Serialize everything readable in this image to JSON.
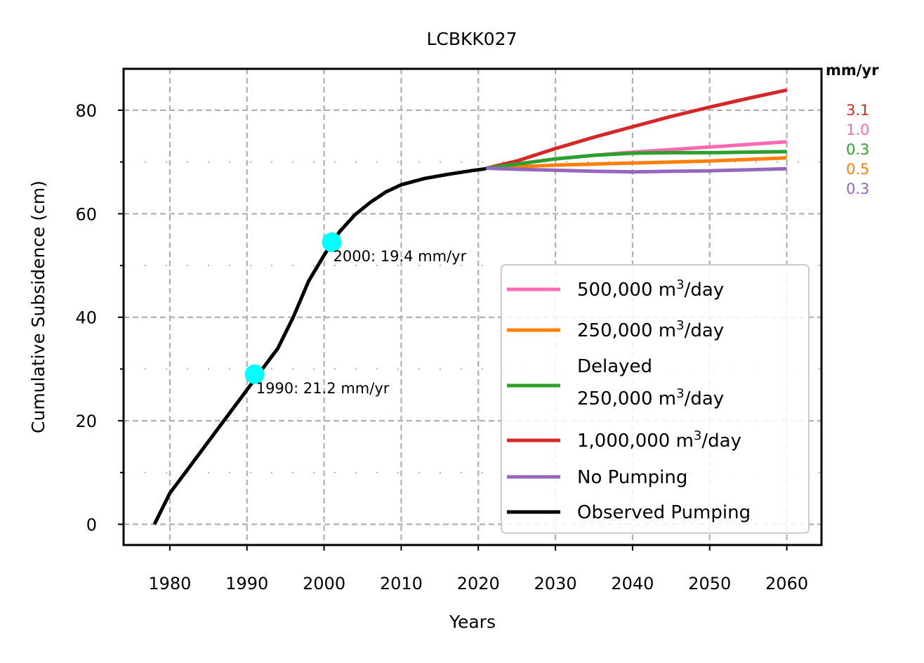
{
  "chart_data": {
    "type": "line",
    "title": "LCBKK027",
    "xlabel": "Years",
    "ylabel": "Cumulative Subsidence (cm)",
    "xlim": [
      1974,
      2064.5
    ],
    "ylim": [
      -4,
      88
    ],
    "xticks": [
      1980,
      1990,
      2000,
      2010,
      2020,
      2030,
      2040,
      2050,
      2060
    ],
    "yticks": [
      0,
      20,
      40,
      60,
      80
    ],
    "grid": true,
    "legend_position": "lower-right",
    "observed": {
      "name": "Observed Pumping",
      "color": "#000000",
      "x": [
        1978,
        1980,
        1983,
        1986,
        1989,
        1992,
        1994,
        1996,
        1998,
        2000,
        2002,
        2004,
        2006,
        2008,
        2010,
        2013,
        2016,
        2019,
        2021
      ],
      "y": [
        0,
        6,
        12,
        18,
        24,
        30,
        34,
        40,
        47,
        52,
        56.5,
        59.8,
        62.2,
        64.2,
        65.6,
        66.8,
        67.6,
        68.3,
        68.7
      ]
    },
    "series": [
      {
        "name": "500,000 m³/day",
        "label_main": "500,000 m",
        "label_sup": "3",
        "label_tail": "/day",
        "color": "#ff69b4",
        "x": [
          2021,
          2025,
          2030,
          2035,
          2040,
          2045,
          2050,
          2055,
          2060
        ],
        "y": [
          68.8,
          69.6,
          70.6,
          71.3,
          71.9,
          72.4,
          72.9,
          73.4,
          73.9
        ],
        "rate": "1.0"
      },
      {
        "name": "250,000 m³/day",
        "label_main": "250,000 m",
        "label_sup": "3",
        "label_tail": "/day",
        "color": "#ff7f0e",
        "x": [
          2021,
          2025,
          2030,
          2035,
          2040,
          2045,
          2050,
          2055,
          2060
        ],
        "y": [
          68.8,
          69.1,
          69.4,
          69.6,
          69.8,
          70.0,
          70.2,
          70.5,
          70.8
        ],
        "rate": "0.5"
      },
      {
        "name": "Delayed 250,000 m³/day",
        "label_pre": "Delayed",
        "label_main": "250,000 m",
        "label_sup": "3",
        "label_tail": "/day",
        "color": "#2ca02c",
        "x": [
          2021,
          2025,
          2030,
          2035,
          2040,
          2045,
          2050,
          2055,
          2060
        ],
        "y": [
          68.8,
          69.6,
          70.6,
          71.3,
          71.7,
          71.8,
          71.8,
          71.9,
          72.0
        ],
        "rate": "0.3"
      },
      {
        "name": "1,000,000 m³/day",
        "label_main": "1,000,000 m",
        "label_sup": "3",
        "label_tail": "/day",
        "color": "#d62728",
        "x": [
          2021,
          2025,
          2030,
          2035,
          2040,
          2045,
          2050,
          2055,
          2060
        ],
        "y": [
          68.8,
          70.2,
          72.6,
          74.8,
          76.8,
          78.8,
          80.6,
          82.3,
          83.9
        ],
        "rate": "3.1"
      },
      {
        "name": "No Pumping",
        "label_main": "No Pumping",
        "label_sup": "",
        "label_tail": "",
        "color": "#9467bd",
        "x": [
          2021,
          2025,
          2030,
          2035,
          2040,
          2045,
          2050,
          2055,
          2060
        ],
        "y": [
          68.8,
          68.6,
          68.4,
          68.2,
          68.1,
          68.2,
          68.3,
          68.5,
          68.7
        ],
        "rate": "0.3"
      }
    ],
    "rate_header": "mm/yr",
    "rate_order": [
      "1,000,000 m³/day",
      "500,000 m³/day",
      "Delayed 250,000 m³/day",
      "250,000 m³/day",
      "No Pumping"
    ],
    "markers": [
      {
        "x": 1991,
        "y": 29,
        "label": "1990: 21.2 mm/yr",
        "color": "#00ffff"
      },
      {
        "x": 2001,
        "y": 54.5,
        "label": "2000: 19.4 mm/yr",
        "color": "#00ffff"
      }
    ]
  }
}
